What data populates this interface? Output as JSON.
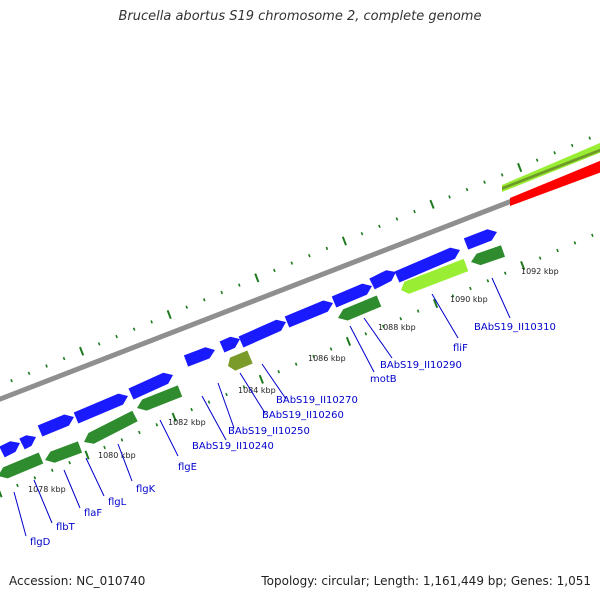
{
  "title": "Brucella abortus S19 chromosome 2, complete genome",
  "footer": {
    "accession": "Accession: NC_010740",
    "topology": "Topology: circular; Length: 1,161,449 bp; Genes: 1,051"
  },
  "colors": {
    "forward_cds": "#1a1aff",
    "reverse_cds": "#2e8b2e",
    "label": "#0000cc",
    "lime_feature": "#99ee33",
    "olive_feature": "#7a9a2a",
    "gc_bar": "#ff0000",
    "backbone": "#888888",
    "tick": "#1e7a1e"
  },
  "position_ticks": [
    "1078 kbp",
    "1080 kbp",
    "1082 kbp",
    "1084 kbp",
    "1086 kbp",
    "1088 kbp",
    "1090 kbp",
    "1092 kbp"
  ],
  "gene_labels": [
    "flgD",
    "flbT",
    "flaF",
    "flgL",
    "flgK",
    "flgE",
    "BAbS19_II10240",
    "BAbS19_II10250",
    "BAbS19_II10260",
    "BAbS19_II10270",
    "motB",
    "BAbS19_II10290",
    "fliF",
    "BAbS19_II10310"
  ]
}
